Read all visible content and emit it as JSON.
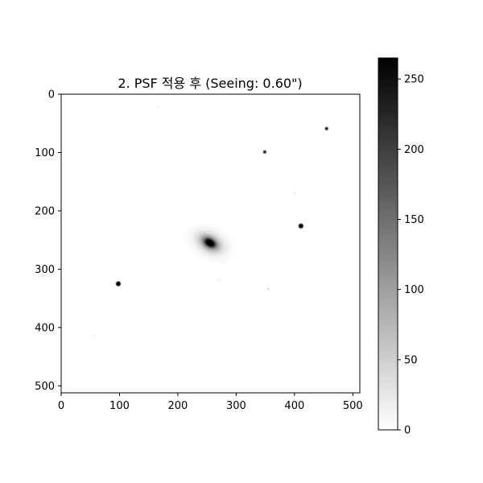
{
  "chart_data": {
    "type": "heatmap",
    "title": "2. PSF 적용 후 (Seeing: 0.60\")",
    "xlabel": "",
    "ylabel": "",
    "x_range": [
      0,
      512
    ],
    "y_range": [
      0,
      512
    ],
    "y_inverted": true,
    "x_ticks": [
      0,
      100,
      200,
      300,
      400,
      500
    ],
    "y_ticks": [
      0,
      100,
      200,
      300,
      400,
      500
    ],
    "grid": false,
    "colormap": "gray_r",
    "colorbar": {
      "range": [
        0,
        265
      ],
      "ticks": [
        0,
        50,
        100,
        150,
        200,
        250
      ]
    },
    "sources": [
      {
        "kind": "galaxy",
        "x": 255,
        "y": 255,
        "peak": 265,
        "sigma_major": 20,
        "sigma_minor": 13,
        "angle_deg": 30
      },
      {
        "kind": "star",
        "x": 98,
        "y": 325,
        "peak": 265
      },
      {
        "kind": "star",
        "x": 411,
        "y": 226,
        "peak": 265
      },
      {
        "kind": "star",
        "x": 455,
        "y": 59,
        "peak": 240
      },
      {
        "kind": "star",
        "x": 349,
        "y": 99,
        "peak": 230
      },
      {
        "kind": "faint",
        "x": 166,
        "y": 22,
        "peak": 30
      },
      {
        "kind": "faint",
        "x": 72,
        "y": 148,
        "peak": 25
      },
      {
        "kind": "faint",
        "x": 401,
        "y": 170,
        "peak": 45
      },
      {
        "kind": "faint",
        "x": 270,
        "y": 318,
        "peak": 40
      },
      {
        "kind": "faint",
        "x": 355,
        "y": 334,
        "peak": 80
      },
      {
        "kind": "faint",
        "x": 55,
        "y": 416,
        "peak": 20
      },
      {
        "kind": "faint",
        "x": 470,
        "y": 222,
        "peak": 15
      }
    ]
  }
}
